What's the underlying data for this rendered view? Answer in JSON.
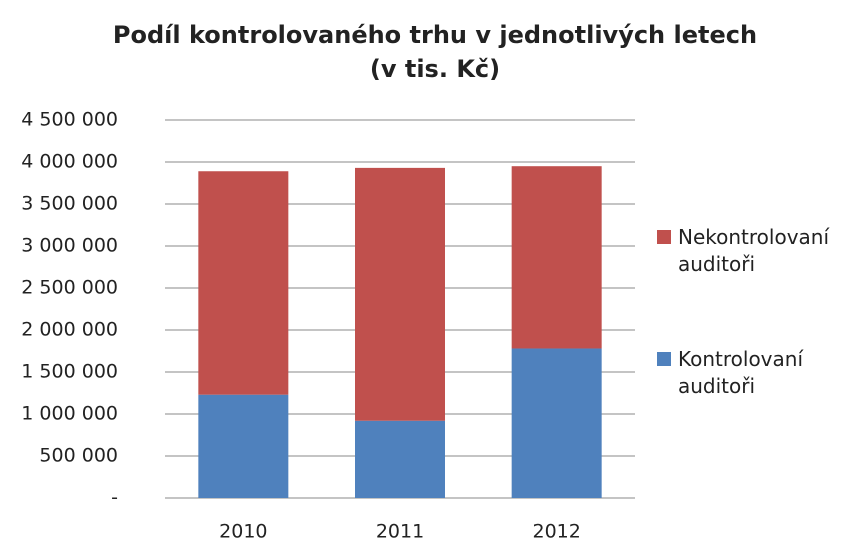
{
  "chart_data": {
    "type": "stacked_bar",
    "title": "Podíl kontrolovaného trhu v jednotlivých letech",
    "subtitle": "(v tis. Kč)",
    "categories": [
      "2010",
      "2011",
      "2012"
    ],
    "series": [
      {
        "name": "Kontrolovaní auditoři",
        "color": "#4f81bd",
        "values": [
          1230000,
          920000,
          1780000
        ]
      },
      {
        "name": "Nekontrolovaní auditoři",
        "color": "#c0504d",
        "values": [
          2660000,
          3010000,
          2170000
        ]
      }
    ],
    "ylim": [
      0,
      4500000
    ],
    "yticks": [
      {
        "value": 0,
        "label": "-"
      },
      {
        "value": 500000,
        "label": "500 000"
      },
      {
        "value": 1000000,
        "label": "1 000 000"
      },
      {
        "value": 1500000,
        "label": "1 500 000"
      },
      {
        "value": 2000000,
        "label": "2 000 000"
      },
      {
        "value": 2500000,
        "label": "2 500 000"
      },
      {
        "value": 3000000,
        "label": "3 000 000"
      },
      {
        "value": 3500000,
        "label": "3 500 000"
      },
      {
        "value": 4000000,
        "label": "4 000 000"
      },
      {
        "value": 4500000,
        "label": "4 500 000"
      }
    ],
    "grid": true,
    "legend": "right"
  }
}
